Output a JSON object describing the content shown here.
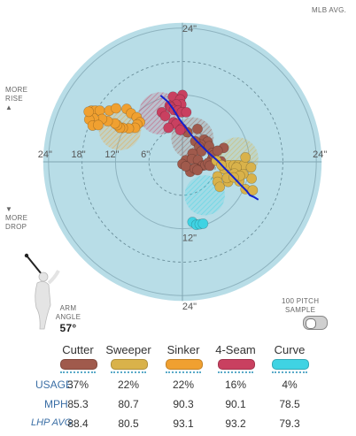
{
  "header": {
    "mlb_avg_label": "MLB AVG."
  },
  "side_labels": {
    "rise": [
      "MORE",
      "RISE"
    ],
    "rise_arrow": "▲",
    "drop_arrow": "▼",
    "drop": [
      "MORE",
      "DROP"
    ]
  },
  "arm_angle": {
    "label": [
      "ARM",
      "ANGLE"
    ],
    "value": "57°"
  },
  "sample_toggle": {
    "label": [
      "100 PITCH",
      "SAMPLE"
    ]
  },
  "stat_rows": {
    "usage": "USAGE",
    "mph": "MPH",
    "lhp_avg": "LHP AVG"
  },
  "chart_data": {
    "type": "scatter",
    "units": "in",
    "horizontal_ticks": [
      "24\"",
      "18\"",
      "12\"",
      "6\"",
      "24\""
    ],
    "vertical_ticks": [
      "24\"",
      "12\"",
      "24\""
    ],
    "xlim": [
      -26,
      26
    ],
    "ylim": [
      -26,
      26
    ],
    "ring_values": [
      6,
      12,
      18,
      24
    ],
    "pitch_types": [
      {
        "name": "Cutter",
        "color": "#a05a4c",
        "usage": "37%",
        "mph": "85.3",
        "lhp_avg": "88.4",
        "avg": {
          "x": 1.8,
          "y": 4.2,
          "r": 3.8
        },
        "points": [
          [
            0.9,
            5.3
          ],
          [
            2.7,
            5.9
          ],
          [
            3.9,
            4.0
          ],
          [
            4.5,
            3.6
          ],
          [
            3.3,
            3.1
          ],
          [
            2.3,
            3.7
          ],
          [
            3.0,
            2.7
          ],
          [
            4.8,
            2.8
          ],
          [
            5.4,
            1.6
          ],
          [
            3.4,
            1.9
          ],
          [
            1.8,
            1.5
          ],
          [
            0.6,
            0.3
          ],
          [
            1.7,
            0.5
          ],
          [
            2.8,
            0.3
          ],
          [
            5.3,
            0.5
          ],
          [
            6.9,
            0.1
          ],
          [
            3.6,
            -0.7
          ],
          [
            2.4,
            -1.2
          ],
          [
            1.4,
            -1.3
          ],
          [
            4.1,
            -0.6
          ],
          [
            4.6,
            -0.2
          ],
          [
            0.0,
            -0.4
          ],
          [
            1.4,
            -1.8
          ],
          [
            5.6,
            1.2
          ],
          [
            0.6,
            -0.8
          ],
          [
            4.9,
            -0.7
          ],
          [
            2.2,
            -1.2
          ],
          [
            2.7,
            -1.5
          ],
          [
            7.4,
            2.5
          ],
          [
            6.3,
            2.0
          ]
        ]
      },
      {
        "name": "Sweeper",
        "color": "#d9b24a",
        "usage": "22%",
        "mph": "80.7",
        "lhp_avg": "80.5",
        "avg": {
          "x": 9.8,
          "y": 0.6,
          "r": 3.8
        },
        "points": [
          [
            6.1,
            0.2
          ],
          [
            7.5,
            -1.3
          ],
          [
            8.3,
            -0.6
          ],
          [
            9.2,
            -0.6
          ],
          [
            10.0,
            -0.6
          ],
          [
            11.0,
            -0.6
          ],
          [
            11.3,
            0.8
          ],
          [
            12.3,
            -1.0
          ],
          [
            12.4,
            -3.0
          ],
          [
            9.7,
            -1.0
          ],
          [
            6.3,
            -2.6
          ],
          [
            6.3,
            -3.6
          ],
          [
            6.7,
            -4.5
          ],
          [
            11.3,
            -4.9
          ],
          [
            9.3,
            -2.1
          ],
          [
            10.9,
            -2.2
          ],
          [
            8.2,
            -3.6
          ],
          [
            8.0,
            -2.9
          ],
          [
            10.2,
            -3.5
          ],
          [
            10.3,
            -2.5
          ],
          [
            9.2,
            -2.8
          ],
          [
            12.6,
            -5.1
          ],
          [
            7.0,
            -0.6
          ]
        ]
      },
      {
        "name": "Sinker",
        "color": "#f0a030",
        "usage": "22%",
        "mph": "90.3",
        "lhp_avg": "93.1",
        "avg": {
          "x": -11.2,
          "y": 5.9,
          "r": 3.8
        },
        "points": [
          [
            -16.3,
            9.2
          ],
          [
            -15.6,
            9.2
          ],
          [
            -14.8,
            9.2
          ],
          [
            -13.1,
            9.2
          ],
          [
            -11.9,
            9.6
          ],
          [
            -10.0,
            9.5
          ],
          [
            -9.2,
            8.7
          ],
          [
            -8.2,
            8.0
          ],
          [
            -7.6,
            7.1
          ],
          [
            -8.1,
            6.7
          ],
          [
            -8.5,
            6.1
          ],
          [
            -9.6,
            6.0
          ],
          [
            -10.7,
            6.1
          ],
          [
            -11.2,
            6.1
          ],
          [
            -11.7,
            6.6
          ],
          [
            -12.1,
            6.9
          ],
          [
            -13.4,
            7.3
          ],
          [
            -14.4,
            7.7
          ],
          [
            -15.9,
            7.8
          ],
          [
            -16.7,
            7.6
          ],
          [
            -16.1,
            6.5
          ],
          [
            -15.1,
            6.6
          ],
          [
            -16.8,
            9.0
          ]
        ]
      },
      {
        "name": "4-Seam",
        "color": "#c94060",
        "usage": "16%",
        "mph": "90.1",
        "lhp_avg": "93.2",
        "avg": {
          "x": -4.0,
          "y": 8.7,
          "r": 3.8
        },
        "points": [
          [
            -1.7,
            11.7
          ],
          [
            0.0,
            12.0
          ],
          [
            -0.4,
            11.2
          ],
          [
            -0.2,
            10.3
          ],
          [
            -1.1,
            10.3
          ],
          [
            -2.3,
            10.1
          ],
          [
            -2.1,
            9.8
          ],
          [
            -1.5,
            9.3
          ],
          [
            -0.8,
            9.2
          ],
          [
            -0.1,
            8.9
          ],
          [
            -3.7,
            8.9
          ],
          [
            -3.1,
            8.2
          ],
          [
            -1.6,
            7.1
          ],
          [
            -1.1,
            6.8
          ],
          [
            0.7,
            8.9
          ],
          [
            -0.1,
            6.0
          ],
          [
            -0.4,
            5.7
          ],
          [
            -2.5,
            6.1
          ]
        ]
      },
      {
        "name": "Curve",
        "color": "#3fd3e3",
        "usage": "4%",
        "mph": "78.5",
        "lhp_avg": "79.3",
        "avg": {
          "x": 4.0,
          "y": -6.0,
          "r": 3.6
        },
        "points": [
          [
            1.8,
            -10.8
          ],
          [
            2.5,
            -11.3
          ],
          [
            3.1,
            -11.2
          ],
          [
            3.7,
            -11.1
          ]
        ]
      }
    ],
    "trend_line": [
      [
        -3.9,
        11.9
      ],
      [
        -2.6,
        10.8
      ],
      [
        -1.6,
        9.4
      ],
      [
        -0.5,
        7.6
      ],
      [
        0.5,
        6.3
      ],
      [
        1.6,
        4.8
      ],
      [
        2.5,
        3.8
      ],
      [
        3.5,
        2.8
      ],
      [
        4.7,
        1.6
      ],
      [
        6.3,
        0.2
      ],
      [
        7.5,
        -1.1
      ],
      [
        9.0,
        -2.6
      ],
      [
        10.4,
        -4.1
      ],
      [
        11.5,
        -5.2
      ],
      [
        12.1,
        -6.0
      ],
      [
        12.8,
        -6.3
      ],
      [
        13.6,
        -6.8
      ]
    ]
  }
}
